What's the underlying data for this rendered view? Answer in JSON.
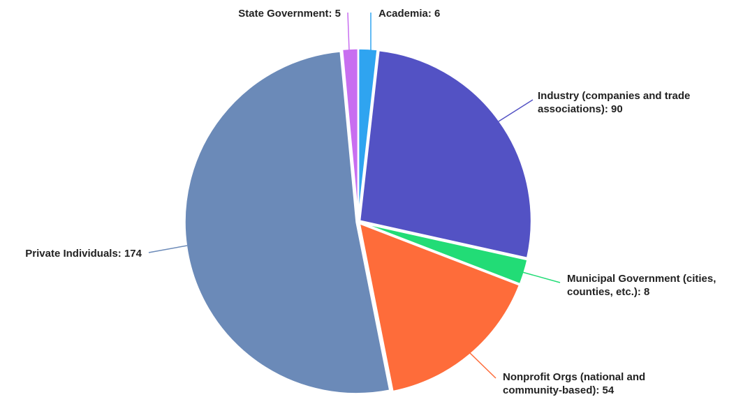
{
  "chart_data": {
    "type": "pie",
    "title": "",
    "start_angle_deg": 0,
    "direction": "clockwise",
    "slices": [
      {
        "category": "Academia",
        "value": 6,
        "color": "#2fa4f0",
        "label_lines": [
          "Academia: 6"
        ],
        "label_anchor": "start"
      },
      {
        "category": "Industry (companies and trade associations)",
        "value": 90,
        "color": "#5352c4",
        "label_lines": [
          "Industry (companies and trade",
          "associations): 90"
        ],
        "label_anchor": "start"
      },
      {
        "category": "Municipal Government (cities, counties, etc.)",
        "value": 8,
        "color": "#22dc76",
        "label_lines": [
          "Municipal Government (cities,",
          "counties, etc.): 8"
        ],
        "label_anchor": "start"
      },
      {
        "category": "Nonprofit Orgs (national and community-based)",
        "value": 54,
        "color": "#fe6c3a",
        "label_lines": [
          "Nonprofit Orgs (national and",
          "community-based): 54"
        ],
        "label_anchor": "start"
      },
      {
        "category": "Private Individuals",
        "value": 174,
        "color": "#6b8ab8",
        "label_lines": [
          "Private Individuals: 174"
        ],
        "label_anchor": "end"
      },
      {
        "category": "State Government",
        "value": 5,
        "color": "#c86ef0",
        "label_lines": [
          "State Government: 5"
        ],
        "label_anchor": "end"
      }
    ],
    "legend": "none"
  }
}
